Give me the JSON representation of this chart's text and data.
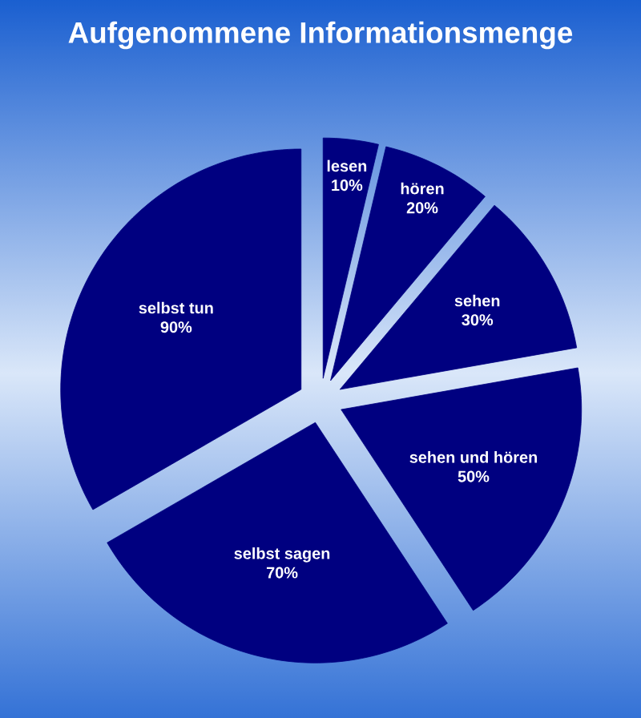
{
  "chart_data": {
    "type": "pie",
    "title": "Aufgenommene Informationsmenge",
    "categories": [
      "lesen",
      "hören",
      "sehen",
      "sehen und hören",
      "selbst sagen",
      "selbst tun"
    ],
    "values": [
      10,
      20,
      30,
      50,
      70,
      90
    ],
    "value_labels": [
      "10%",
      "20%",
      "30%",
      "50%",
      "70%",
      "90%"
    ],
    "colors": [
      "#000080",
      "#000080",
      "#000080",
      "#000080",
      "#000080",
      "#000080"
    ]
  }
}
